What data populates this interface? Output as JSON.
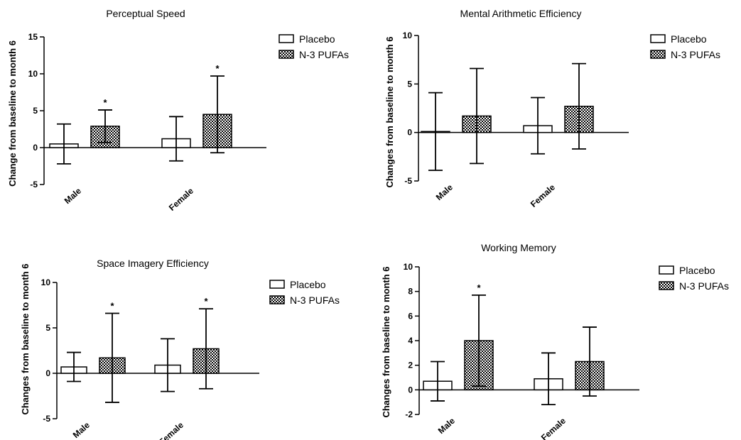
{
  "chart_data": [
    {
      "type": "bar",
      "title": "Perceptual Speed",
      "ylabel": "Change from baseline to month 6",
      "xlabel": "",
      "ylim": [
        -5,
        15
      ],
      "yticks": [
        -5,
        0,
        5,
        10,
        15
      ],
      "categories": [
        "Male",
        "Female"
      ],
      "series": [
        {
          "name": "Placebo",
          "values": [
            0.5,
            1.2
          ],
          "error": [
            2.7,
            3.0
          ],
          "fill": "white",
          "significant": [
            false,
            false
          ]
        },
        {
          "name": "N-3 PUFAs",
          "values": [
            2.9,
            4.5
          ],
          "error": [
            2.2,
            5.2
          ],
          "fill": "checkered",
          "significant": [
            true,
            true
          ]
        }
      ],
      "legend": "right",
      "grid": false
    },
    {
      "type": "bar",
      "title": "Mental Arithmetic Efficiency",
      "ylabel": "Changes from baseline to month 6",
      "xlabel": "",
      "ylim": [
        -5,
        10
      ],
      "yticks": [
        -5,
        0,
        5,
        10
      ],
      "categories": [
        "Male",
        "Female"
      ],
      "series": [
        {
          "name": "Placebo",
          "values": [
            0.1,
            0.7
          ],
          "error": [
            4.0,
            2.9
          ],
          "fill": "white",
          "significant": [
            false,
            false
          ]
        },
        {
          "name": "N-3 PUFAs",
          "values": [
            1.7,
            2.7
          ],
          "error": [
            4.9,
            4.4
          ],
          "fill": "checkered",
          "significant": [
            false,
            false
          ]
        }
      ],
      "legend": "right",
      "grid": false
    },
    {
      "type": "bar",
      "title": "Space Imagery Efficiency",
      "ylabel": "Changes from baseline to month 6",
      "xlabel": "",
      "ylim": [
        -5,
        10
      ],
      "yticks": [
        -5,
        0,
        5,
        10
      ],
      "categories": [
        "Male",
        "Female"
      ],
      "series": [
        {
          "name": "Placebo",
          "values": [
            0.7,
            0.9
          ],
          "error": [
            1.6,
            2.9
          ],
          "fill": "white",
          "significant": [
            false,
            false
          ]
        },
        {
          "name": "N-3 PUFAs",
          "values": [
            1.7,
            2.7
          ],
          "error": [
            4.9,
            4.4
          ],
          "fill": "checkered",
          "significant": [
            true,
            true
          ]
        }
      ],
      "legend": "right",
      "grid": false
    },
    {
      "type": "bar",
      "title": "Working Memory",
      "ylabel": "Changes from baseline to month 6",
      "xlabel": "",
      "ylim": [
        -2,
        10
      ],
      "yticks": [
        -2,
        0,
        2,
        4,
        6,
        8,
        10
      ],
      "categories": [
        "Male",
        "Female"
      ],
      "series": [
        {
          "name": "Placebo",
          "values": [
            0.7,
            0.9
          ],
          "error": [
            1.6,
            2.1
          ],
          "fill": "white",
          "significant": [
            false,
            false
          ]
        },
        {
          "name": "N-3 PUFAs",
          "values": [
            4.0,
            2.3
          ],
          "error": [
            3.7,
            2.8
          ],
          "fill": "checkered",
          "significant": [
            true,
            false
          ]
        }
      ],
      "legend": "right",
      "grid": false
    }
  ],
  "significance_marker": "*"
}
